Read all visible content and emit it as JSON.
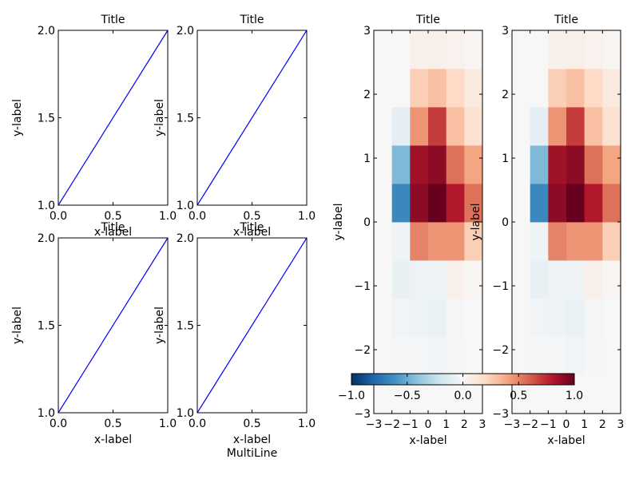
{
  "chart_data": [
    {
      "type": "line",
      "title": "Title",
      "xlabel": "x-label",
      "ylabel": "y-label",
      "xlim": [
        0,
        1
      ],
      "ylim": [
        1,
        2
      ],
      "xticks": [
        "0.0",
        "0.5",
        "1.0"
      ],
      "yticks": [
        "1.0",
        "1.5",
        "2.0"
      ],
      "series": [
        {
          "x": [
            0,
            1
          ],
          "y": [
            1,
            2
          ],
          "color": "#0000ff"
        }
      ]
    },
    {
      "type": "line",
      "title": "Title",
      "xlabel": "x-label",
      "ylabel": "y-label",
      "xlim": [
        0,
        1
      ],
      "ylim": [
        1,
        2
      ],
      "xticks": [
        "0.0",
        "0.5",
        "1.0"
      ],
      "yticks": [
        "1.0",
        "1.5",
        "2.0"
      ],
      "series": [
        {
          "x": [
            0,
            1
          ],
          "y": [
            1,
            2
          ],
          "color": "#0000ff"
        }
      ]
    },
    {
      "type": "line",
      "title": "Title",
      "xlabel": "x-label",
      "ylabel": "y-label",
      "xlim": [
        0,
        1
      ],
      "ylim": [
        1,
        2
      ],
      "xticks": [
        "0.0",
        "0.5",
        "1.0"
      ],
      "yticks": [
        "1.0",
        "1.5",
        "2.0"
      ],
      "series": [
        {
          "x": [
            0,
            1
          ],
          "y": [
            1,
            2
          ],
          "color": "#0000ff"
        }
      ]
    },
    {
      "type": "line",
      "title": "Title",
      "xlabel": "x-label\nMultiLine",
      "ylabel": "y-label",
      "xlim": [
        0,
        1
      ],
      "ylim": [
        1,
        2
      ],
      "xticks": [
        "0.0",
        "0.5",
        "1.0"
      ],
      "yticks": [
        "1.0",
        "1.5",
        "2.0"
      ],
      "series": [
        {
          "x": [
            0,
            1
          ],
          "y": [
            1,
            2
          ],
          "color": "#0000ff"
        }
      ]
    },
    {
      "type": "heatmap",
      "title": "Title",
      "xlabel": "x-label",
      "ylabel": "y-label",
      "xlim": [
        -3,
        3
      ],
      "ylim": [
        -3,
        3
      ],
      "xticks": [
        "−3",
        "−2",
        "−1",
        "0",
        "1",
        "2",
        "3"
      ],
      "yticks": [
        "−3",
        "−2",
        "−1",
        "0",
        "1",
        "2",
        "3"
      ],
      "colormap": "RdBu_r",
      "vmin": -1,
      "vmax": 1,
      "values": [
        [
          0.0,
          0.0,
          0.0,
          0.0,
          0.0,
          0.0
        ],
        [
          0.0,
          -0.01,
          -0.02,
          -0.03,
          -0.01,
          0.0
        ],
        [
          0.0,
          -0.03,
          -0.06,
          -0.07,
          -0.02,
          0.0
        ],
        [
          0.0,
          -0.08,
          -0.06,
          -0.05,
          0.05,
          0.02
        ],
        [
          0.0,
          -0.05,
          0.5,
          0.45,
          0.45,
          0.25
        ],
        [
          0.0,
          -0.65,
          0.9,
          1.0,
          0.8,
          0.55
        ],
        [
          0.0,
          -0.45,
          0.85,
          0.9,
          0.55,
          0.4
        ],
        [
          0.0,
          -0.1,
          0.45,
          0.7,
          0.3,
          0.15
        ],
        [
          0.0,
          0.0,
          0.25,
          0.3,
          0.2,
          0.1
        ],
        [
          0.0,
          0.0,
          0.05,
          0.06,
          0.04,
          0.02
        ]
      ]
    },
    {
      "type": "heatmap",
      "title": "Title",
      "xlabel": "x-label",
      "ylabel": "y-label",
      "xlim": [
        -3,
        3
      ],
      "ylim": [
        -3,
        3
      ],
      "xticks": [
        "−3",
        "−2",
        "−1",
        "0",
        "1",
        "2",
        "3"
      ],
      "yticks": [
        "−3",
        "−2",
        "−1",
        "0",
        "1",
        "2",
        "3"
      ],
      "colormap": "RdBu_r",
      "vmin": -1,
      "vmax": 1,
      "values": [
        [
          0.0,
          0.0,
          0.0,
          0.0,
          0.0,
          0.0
        ],
        [
          0.0,
          -0.01,
          -0.02,
          -0.03,
          -0.01,
          0.0
        ],
        [
          0.0,
          -0.03,
          -0.06,
          -0.07,
          -0.02,
          0.0
        ],
        [
          0.0,
          -0.08,
          -0.06,
          -0.05,
          0.05,
          0.02
        ],
        [
          0.0,
          -0.05,
          0.5,
          0.45,
          0.45,
          0.25
        ],
        [
          0.0,
          -0.65,
          0.9,
          1.0,
          0.8,
          0.55
        ],
        [
          0.0,
          -0.45,
          0.85,
          0.9,
          0.55,
          0.4
        ],
        [
          0.0,
          -0.1,
          0.45,
          0.7,
          0.3,
          0.15
        ],
        [
          0.0,
          0.0,
          0.25,
          0.3,
          0.2,
          0.1
        ],
        [
          0.0,
          0.0,
          0.05,
          0.06,
          0.04,
          0.02
        ]
      ]
    }
  ],
  "colorbar": {
    "orientation": "horizontal",
    "colormap": "RdBu_r",
    "range": [
      -1,
      1
    ],
    "ticks": [
      "−1.0",
      "−0.5",
      "0.0",
      "0.5",
      "1.0"
    ]
  }
}
